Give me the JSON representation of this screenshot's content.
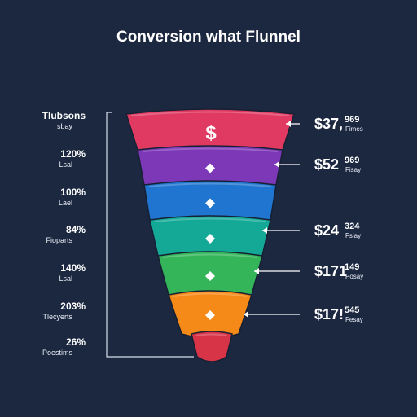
{
  "page": {
    "title": "Conversion what Flunnel"
  },
  "chart_data": {
    "type": "funnel",
    "title": "Conversion what Flunnel",
    "left_labels": [
      {
        "main": "Tlubsons",
        "sub": "sbay"
      },
      {
        "main": "120%",
        "sub": "Lsal"
      },
      {
        "main": "100%",
        "sub": "Lael"
      },
      {
        "main": "84%",
        "sub": "Fioparts"
      },
      {
        "main": "140%",
        "sub": "Lsal"
      },
      {
        "main": "203%",
        "sub": "Tlecyerts"
      },
      {
        "main": "26%",
        "sub": "Poestims"
      }
    ],
    "stages": [
      {
        "color": "#e03a62",
        "icon": "dollar-icon",
        "icon_text": "$"
      },
      {
        "color": "#7c38b6",
        "icon": "diamond-icon"
      },
      {
        "color": "#1f75cf",
        "icon": "diamond-icon"
      },
      {
        "color": "#14a997",
        "icon": "diamond-icon"
      },
      {
        "color": "#34b55a",
        "icon": "diamond-icon"
      },
      {
        "color": "#f68a18",
        "icon": "diamond-icon"
      },
      {
        "color": "#d73448"
      }
    ],
    "right_labels": [
      {
        "main": "$37,",
        "small": "969",
        "sub": "Fimes",
        "stage_index": 0
      },
      {
        "main": "$52",
        "small": "969",
        "sub": "Fisay",
        "stage_index": 1
      },
      {
        "main": "$24",
        "small": "324",
        "sub": "Fsiay",
        "stage_index": 3
      },
      {
        "main": "$171",
        "small": "149",
        "sub": "Posay",
        "stage_index": 4
      },
      {
        "main": "$17!",
        "small": "545",
        "sub": "Fesay",
        "stage_index": 5
      }
    ]
  }
}
